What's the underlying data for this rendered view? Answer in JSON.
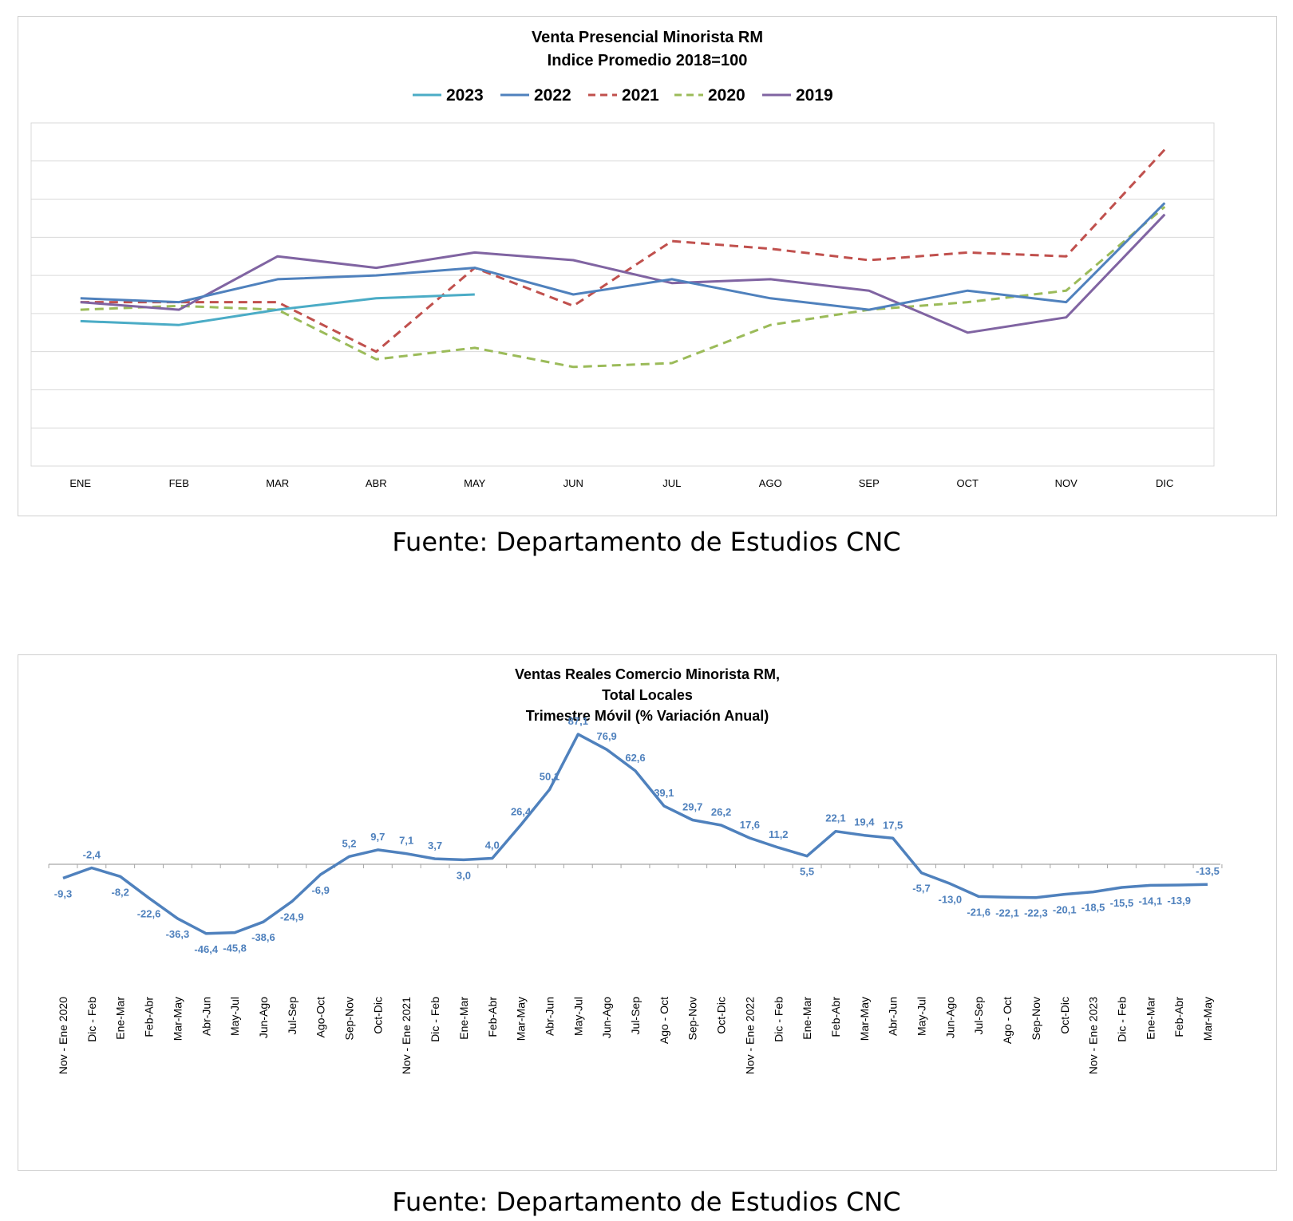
{
  "charts_source": "Fuente: Departamento de Estudios CNC",
  "chart_data": [
    {
      "type": "line",
      "title": "Venta Presencial Minorista RM",
      "subtitle": "Indice Promedio 2018=100",
      "categories": [
        "ENE",
        "FEB",
        "MAR",
        "ABR",
        "MAY",
        "JUN",
        "JUL",
        "AGO",
        "SEP",
        "OCT",
        "NOV",
        "DIC"
      ],
      "ylim": [
        50,
        140
      ],
      "grid": true,
      "legend": "top",
      "series": [
        {
          "name": "2023",
          "color": "#4bacc6",
          "dash": false,
          "values": [
            88,
            87,
            91,
            94,
            95,
            null,
            null,
            null,
            null,
            null,
            null,
            null
          ]
        },
        {
          "name": "2022",
          "color": "#4f81bd",
          "dash": false,
          "values": [
            94,
            93,
            99,
            100,
            102,
            95,
            99,
            94,
            91,
            96,
            93,
            119
          ]
        },
        {
          "name": "2021",
          "color": "#c0504d",
          "dash": true,
          "values": [
            93,
            93,
            93,
            80,
            102,
            92,
            109,
            107,
            104,
            106,
            105,
            133
          ]
        },
        {
          "name": "2020",
          "color": "#9bbb59",
          "dash": true,
          "values": [
            91,
            92,
            91,
            78,
            81,
            76,
            77,
            87,
            91,
            93,
            96,
            118
          ]
        },
        {
          "name": "2019",
          "color": "#8064a2",
          "dash": false,
          "values": [
            93,
            91,
            105,
            102,
            106,
            104,
            98,
            99,
            96,
            85,
            89,
            116
          ]
        }
      ]
    },
    {
      "type": "line",
      "title": "Ventas Reales Comercio Minorista RM,",
      "subtitle": "Total Locales",
      "subtitle2": "Trimestre Móvil (% Variación Anual)",
      "color": "#4f81bd",
      "ylim": [
        -60,
        110
      ],
      "categories": [
        "Nov - Ene 2020",
        "Dic - Feb",
        "Ene-Mar",
        "Feb-Abr",
        "Mar-May",
        "Abr-Jun",
        "May-Jul",
        "Jun-Ago",
        "Jul-Sep",
        "Ago-Oct",
        "Sep-Nov",
        "Oct-Dic",
        "Nov - Ene 2021",
        "Dic - Feb",
        "Ene-Mar",
        "Feb-Abr",
        "Mar-May",
        "Abr-Jun",
        "May-Jul",
        "Jun-Ago",
        "Jul-Sep",
        "Ago - Oct",
        "Sep-Nov",
        "Oct-Dic",
        "Nov - Ene 2022",
        "Dic - Feb",
        "Ene-Mar",
        "Feb-Abr",
        "Mar-May",
        "Abr-Jun",
        "May-Jul",
        "Jun-Ago",
        "Jul-Sep",
        "Ago - Oct",
        "Sep-Nov",
        "Oct-Dic",
        "Nov - Ene 2023",
        "Dic - Feb",
        "Ene-Mar",
        "Feb-Abr",
        "Mar-May"
      ],
      "values": [
        -9.3,
        -2.4,
        -8.2,
        -22.6,
        -36.3,
        -46.4,
        -45.8,
        -38.6,
        -24.9,
        -6.9,
        5.2,
        9.7,
        7.1,
        3.7,
        3.0,
        4.0,
        26.4,
        50.1,
        87.1,
        76.9,
        62.6,
        39.1,
        29.7,
        26.2,
        17.6,
        11.2,
        5.5,
        22.1,
        19.4,
        17.5,
        -5.7,
        -13.0,
        -21.6,
        -22.1,
        -22.3,
        -20.1,
        -18.5,
        -15.5,
        -14.1,
        -13.9,
        -13.5
      ],
      "labels": [
        "-9,3",
        "-2,4",
        "-8,2",
        "-22,6",
        "-36,3",
        "-46,4",
        "-45,8",
        "-38,6",
        "-24,9",
        "-6,9",
        "5,2",
        "9,7",
        "7,1",
        "3,7",
        "3,0",
        "4,0",
        "26,4",
        "50,1",
        "87,1",
        "76,9",
        "62,6",
        "39,1",
        "29,7",
        "26,2",
        "17,6",
        "11,2",
        "5,5",
        "22,1",
        "19,4",
        "17,5",
        "-5,7",
        "-13,0",
        "-21,6",
        "-22,1",
        "-22,3",
        "-20,1",
        "-18,5",
        "-15,5",
        "-14,1",
        "-13,9",
        "-13,5"
      ]
    }
  ]
}
